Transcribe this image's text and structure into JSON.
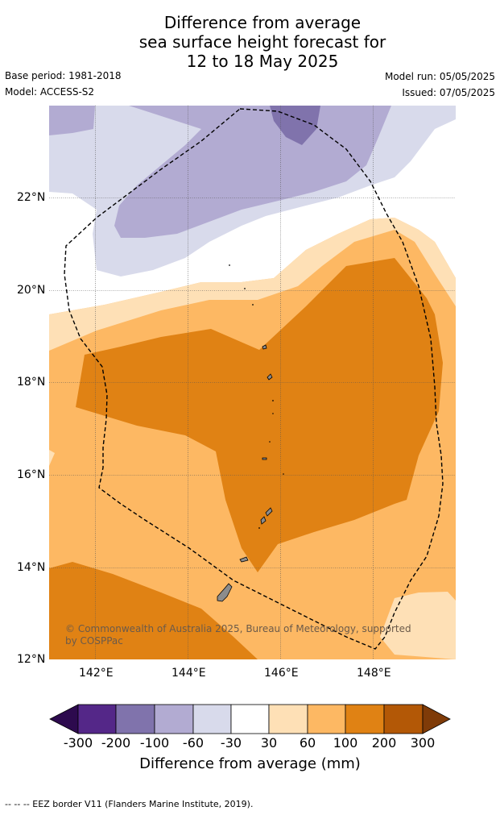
{
  "title": {
    "line1": "Difference from average",
    "line2": "sea surface height forecast for",
    "line3": "12 to 18 May 2025"
  },
  "meta": {
    "base_period": "Base period: 1981-2018",
    "model": "Model: ACCESS-S2",
    "model_run": "Model run: 05/05/2025",
    "issued": "Issued: 07/05/2025"
  },
  "map": {
    "lon_labels": [
      "142°E",
      "144°E",
      "146°E",
      "148°E"
    ],
    "lat_labels": [
      "22°N",
      "20°N",
      "18°N",
      "16°N",
      "14°N",
      "12°N"
    ],
    "copyright": "© Commonwealth of Australia 2025, Bureau of Meteorology, supported by COSPPac",
    "colors": {
      "n300": "#2d0a4e",
      "n200": "#542788",
      "n100": "#8073ac",
      "n60": "#b2abd2",
      "n30": "#d8daeb",
      "zero": "#ffffff",
      "p30": "#fee0b6",
      "p60": "#fdb863",
      "p100": "#e08214",
      "p200": "#b35806",
      "p300": "#7f3b08",
      "land": "#8c8c8c"
    }
  },
  "colorbar": {
    "labels": [
      "-300",
      "-200",
      "-100",
      "-60",
      "-30",
      "30",
      "60",
      "100",
      "200",
      "300"
    ],
    "title": "Difference from average (mm)"
  },
  "footer": "--  --  -- EEZ border V11 (Flanders Marine Institute, 2019)."
}
